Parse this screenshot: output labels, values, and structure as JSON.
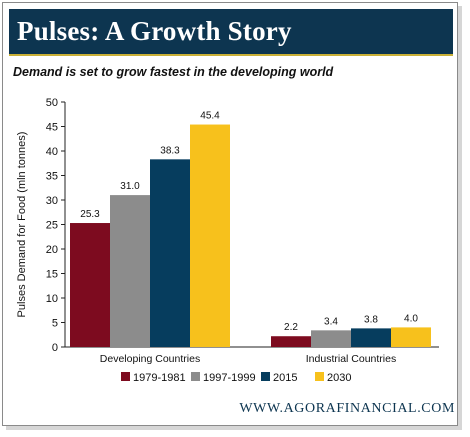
{
  "header": {
    "title": "Pulses: A Growth Story"
  },
  "subtitle": "Demand is set to grow fastest in the developing world",
  "footer": {
    "url": "WWW.AGORAFINANCIAL.COM"
  },
  "colors": {
    "header_bg": "#0d3550",
    "accent": "#c9b037"
  },
  "chart_data": {
    "type": "bar",
    "title": "",
    "ylabel": "Pulses Demand for Food (mln tonnes)",
    "xlabel": "",
    "ylim": [
      0,
      50
    ],
    "yticks": [
      "0",
      "5",
      "10",
      "15",
      "20",
      "25",
      "30",
      "35",
      "40",
      "45",
      "50"
    ],
    "categories": [
      "Developing Countries",
      "Industrial Countries"
    ],
    "series": [
      {
        "name": "1979-1981",
        "color": "#7d0b1f",
        "values": [
          25.3,
          2.2
        ],
        "labels": [
          "25.3",
          "2.2"
        ]
      },
      {
        "name": "1997-1999",
        "color": "#8c8c8c",
        "values": [
          31.0,
          3.4
        ],
        "labels": [
          "31.0",
          "3.4"
        ]
      },
      {
        "name": "2015",
        "color": "#063d5e",
        "values": [
          38.3,
          3.8
        ],
        "labels": [
          "38.3",
          "3.8"
        ]
      },
      {
        "name": "2030",
        "color": "#f7c11c",
        "values": [
          45.4,
          4.0
        ],
        "labels": [
          "45.4",
          "4.0"
        ]
      }
    ],
    "legend_position": "bottom",
    "grid": false
  }
}
